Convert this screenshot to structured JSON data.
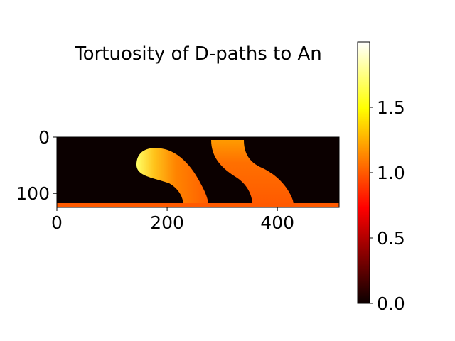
{
  "chart_data": {
    "type": "heatmap",
    "title": "Tortuosity of D-paths to An",
    "xlabel": "",
    "ylabel": "",
    "image_shape": {
      "width": 512,
      "height": 125
    },
    "xlim": [
      0,
      512
    ],
    "ylim": [
      125,
      0
    ],
    "x_ticks": [
      0,
      200,
      400
    ],
    "y_ticks": [
      0,
      100
    ],
    "colormap": "hot",
    "colorbar": {
      "range": [
        0.0,
        2.0
      ],
      "ticks": [
        0.0,
        0.5,
        1.0,
        1.5
      ]
    },
    "regions": [
      {
        "name": "background",
        "value": 0.0
      },
      {
        "name": "bottom strip",
        "value": 1.05,
        "rows": [
          120,
          125
        ],
        "cols": [
          0,
          512
        ]
      },
      {
        "name": "left S-shaped channel",
        "value_range": [
          1.05,
          1.95
        ],
        "cols": [
          145,
          287
        ],
        "rows": [
          20,
          120
        ]
      },
      {
        "name": "right S-shaped channel",
        "value_range": [
          1.05,
          1.3
        ],
        "cols": [
          280,
          430
        ],
        "rows": [
          0,
          120
        ]
      }
    ]
  }
}
